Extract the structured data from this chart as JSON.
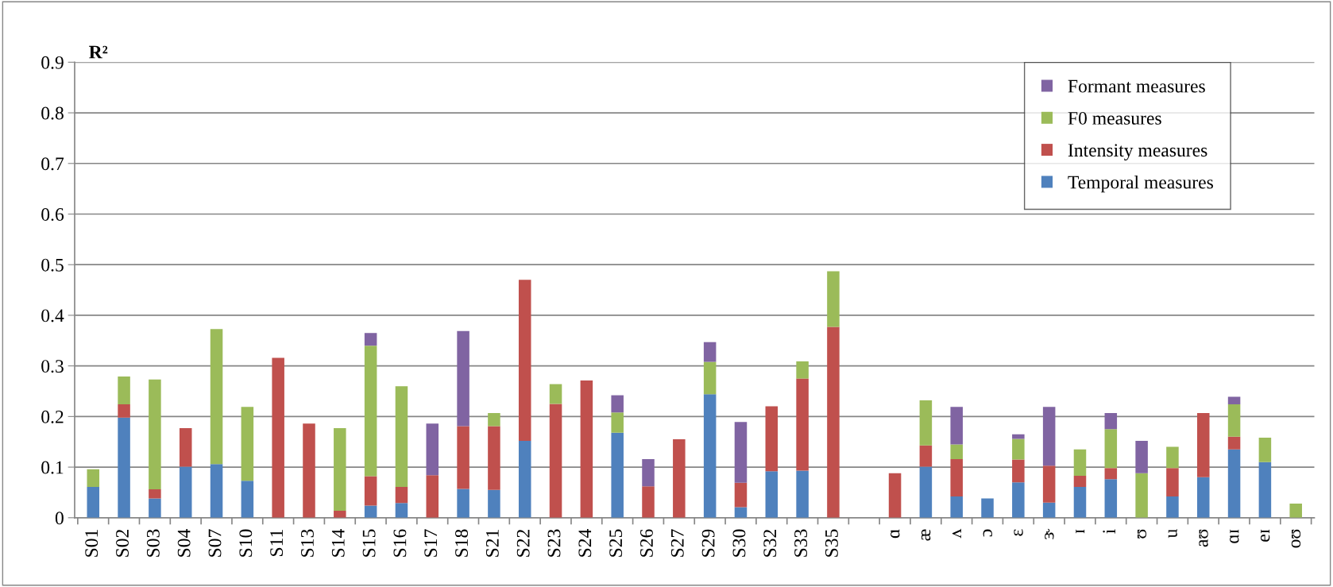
{
  "chart_data": {
    "type": "bar",
    "stacked": true,
    "ylabel": "R²",
    "categories": [
      "S01",
      "S02",
      "S03",
      "S04",
      "S07",
      "S10",
      "S11",
      "S13",
      "S14",
      "S15",
      "S16",
      "S17",
      "S18",
      "S21",
      "S22",
      "S23",
      "S24",
      "S25",
      "S26",
      "S27",
      "S29",
      "S30",
      "S32",
      "S33",
      "S35",
      null,
      "ɑ",
      "æ",
      "ʌ",
      "ɔ",
      "ɛ",
      "ɝ",
      "ɪ",
      "i",
      "ʊ",
      "u",
      "aʊ",
      "ɑɪ",
      "eɪ",
      "oʊ"
    ],
    "series": [
      {
        "name": "Temporal measures",
        "color": "#4f81bd",
        "values": [
          0.061,
          0.198,
          0.038,
          0.101,
          0.106,
          0.073,
          null,
          null,
          null,
          0.024,
          0.029,
          null,
          0.057,
          0.055,
          0.152,
          null,
          null,
          0.168,
          null,
          null,
          0.244,
          0.021,
          0.092,
          0.093,
          null,
          null,
          null,
          0.101,
          0.042,
          0.038,
          0.07,
          0.03,
          0.061,
          0.076,
          null,
          0.042,
          0.08,
          0.135,
          0.11,
          null
        ]
      },
      {
        "name": "Intensity measures",
        "color": "#c0504d",
        "values": [
          null,
          0.026,
          0.018,
          0.076,
          null,
          null,
          0.316,
          0.186,
          0.014,
          0.058,
          0.032,
          0.084,
          0.124,
          0.126,
          0.318,
          0.225,
          0.271,
          null,
          0.062,
          0.155,
          null,
          0.048,
          0.128,
          0.182,
          0.377,
          null,
          0.088,
          0.042,
          0.074,
          null,
          0.045,
          0.073,
          0.022,
          0.022,
          null,
          0.056,
          0.127,
          0.025,
          null,
          null
        ]
      },
      {
        "name": "F0 measures",
        "color": "#9bbb59",
        "values": [
          0.035,
          0.055,
          0.217,
          null,
          0.267,
          0.146,
          null,
          null,
          0.163,
          0.258,
          0.199,
          null,
          null,
          0.026,
          null,
          0.039,
          null,
          0.04,
          null,
          null,
          0.064,
          null,
          null,
          0.034,
          0.11,
          null,
          null,
          0.089,
          0.029,
          null,
          0.041,
          null,
          0.052,
          0.077,
          0.088,
          0.042,
          null,
          0.064,
          0.048,
          0.028
        ]
      },
      {
        "name": "Formant measures",
        "color": "#8064a2",
        "values": [
          null,
          null,
          null,
          null,
          null,
          null,
          null,
          null,
          null,
          0.025,
          null,
          0.102,
          0.188,
          null,
          null,
          null,
          null,
          0.034,
          0.054,
          null,
          0.039,
          0.12,
          null,
          null,
          null,
          null,
          null,
          null,
          0.074,
          null,
          0.009,
          0.116,
          null,
          0.032,
          0.064,
          null,
          null,
          0.015,
          null,
          null
        ]
      }
    ],
    "ylim": [
      0,
      0.9
    ],
    "yticks": [
      0,
      0.1,
      0.2,
      0.3,
      0.4,
      0.5,
      0.6,
      0.7,
      0.8,
      0.9
    ],
    "grid": "y",
    "legend": "top right"
  }
}
